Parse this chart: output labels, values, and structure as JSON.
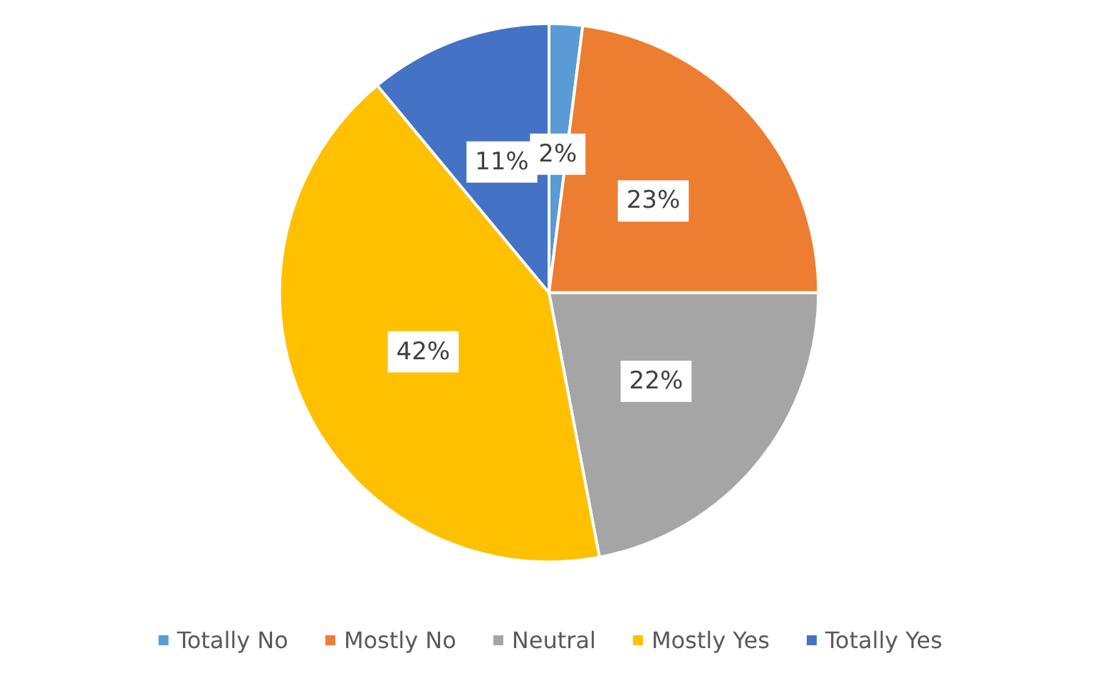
{
  "chart_data": {
    "type": "pie",
    "categories": [
      "Totally No",
      "Mostly No",
      "Neutral",
      "Mostly Yes",
      "Totally Yes"
    ],
    "values": [
      2,
      23,
      22,
      42,
      11
    ],
    "value_labels": [
      "2%",
      "23%",
      "22%",
      "42%",
      "11%"
    ],
    "colors": [
      "#5b9bd5",
      "#ed7d31",
      "#a5a5a5",
      "#ffc000",
      "#4472c4"
    ],
    "legend": "bottom"
  }
}
